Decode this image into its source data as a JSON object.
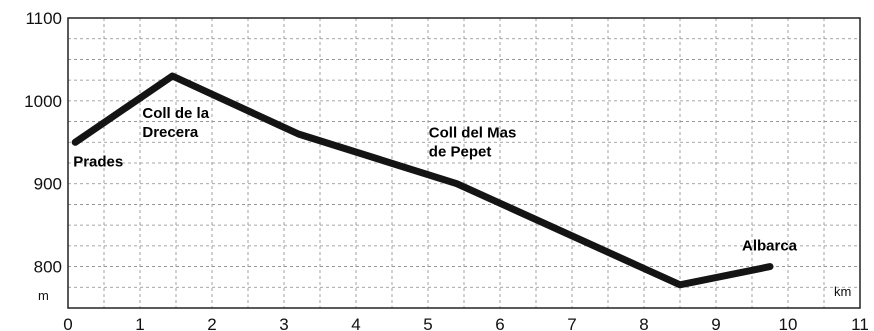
{
  "chart_data": {
    "type": "line",
    "title": "",
    "xlabel": "km",
    "ylabel": "m",
    "x_unit": "km",
    "y_unit": "m",
    "xlim": [
      0,
      11
    ],
    "ylim": [
      750,
      1100
    ],
    "x_ticks": [
      0,
      1,
      2,
      3,
      4,
      5,
      6,
      7,
      8,
      9,
      10,
      11
    ],
    "y_ticks": [
      800,
      900,
      1000,
      1100
    ],
    "grid": true,
    "series": [
      {
        "name": "",
        "color": "#141414",
        "points": [
          {
            "x": 0.1,
            "y": 950
          },
          {
            "x": 1.45,
            "y": 1030
          },
          {
            "x": 3.2,
            "y": 960
          },
          {
            "x": 5.4,
            "y": 900
          },
          {
            "x": 8.5,
            "y": 778
          },
          {
            "x": 9.75,
            "y": 800
          }
        ]
      }
    ],
    "annotations": [
      {
        "x": 0.1,
        "y": 950,
        "lines": [
          "Prades"
        ]
      },
      {
        "x": 1.45,
        "y": 1030,
        "lines": [
          "Coll de la",
          "Drecera"
        ]
      },
      {
        "x": 5.4,
        "y": 900,
        "lines": [
          "Coll del Mas",
          "de Pepet"
        ]
      },
      {
        "x": 9.75,
        "y": 800,
        "lines": [
          "Albarca"
        ]
      }
    ]
  }
}
